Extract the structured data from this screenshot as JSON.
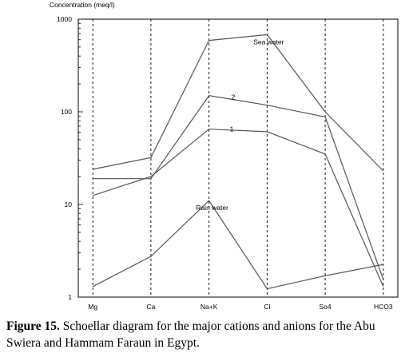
{
  "chart_data": {
    "type": "line",
    "y_label": "Concentration (meq/l)",
    "y_scale": "log",
    "ylim": [
      1,
      1000
    ],
    "y_ticks": [
      {
        "value": 1,
        "label": "1"
      },
      {
        "value": 10,
        "label": "10"
      },
      {
        "value": 100,
        "label": "100"
      },
      {
        "value": 1000,
        "label": "1000"
      }
    ],
    "categories": [
      "Mg",
      "Ca",
      "Na+K",
      "Cl",
      "So4",
      "HCO3"
    ],
    "grid": "vertical dashed at each category",
    "series": [
      {
        "name": "Sea water",
        "values": [
          24,
          32,
          590,
          680,
          100,
          23
        ]
      },
      {
        "name": "2",
        "values": [
          19,
          19,
          150,
          118,
          88,
          1.55
        ]
      },
      {
        "name": "1",
        "values": [
          12.5,
          20,
          65,
          61,
          35,
          1.3
        ]
      },
      {
        "name": "Rain water",
        "values": [
          1.3,
          2.75,
          11,
          1.23,
          1.7,
          2.25
        ]
      }
    ]
  },
  "caption": {
    "label": "Figure 15.",
    "text": " Schoellar diagram for the major cations and anions for the Abu Swiera and Hammam Faraun in Egypt."
  }
}
